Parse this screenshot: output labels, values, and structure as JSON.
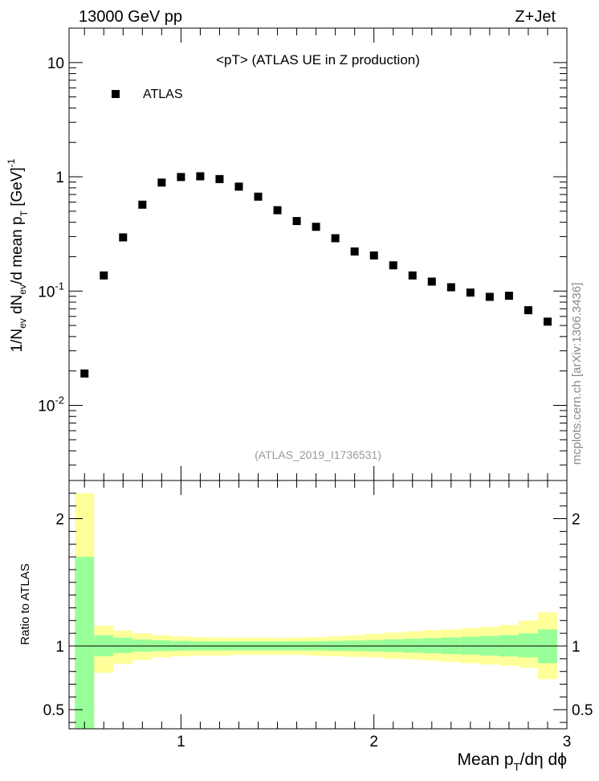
{
  "header": {
    "energy_label": "13000 GeV pp",
    "process_label": "Z+Jet",
    "side_label": "mcplots.cern.ch [arXiv:1306.3436]"
  },
  "chart_data": [
    {
      "type": "scatter",
      "title": "<pT>  (ATLAS UE in Z production)",
      "analysis_label": "(ATLAS_2019_I1736531)",
      "ylabel": "1/N",
      "ylabel_parts": {
        "sub_ev": "ev",
        "mid": " dN",
        "sub_ev2": "ev",
        "tail": "/d mean p",
        "sub_t": "T",
        "unit": " [GeV]",
        "sup": "-1"
      },
      "xlabel": "Mean p",
      "xlabel_parts": {
        "sub_t": "T",
        "tail": "/dη dϕ"
      },
      "log_y": true,
      "xlim": [
        0.42,
        3.0
      ],
      "ylim": [
        0.0022,
        20
      ],
      "y_ticks": [
        {
          "value": 0.01,
          "base": "10",
          "exp": "-2"
        },
        {
          "value": 0.1,
          "base": "10",
          "exp": "-1"
        },
        {
          "value": 1,
          "base": "1",
          "exp": ""
        },
        {
          "value": 10,
          "base": "10",
          "exp": ""
        }
      ],
      "x_ticks": [
        1,
        2,
        3
      ],
      "legend": {
        "placement": "top-left",
        "entries": [
          "ATLAS"
        ]
      },
      "series": [
        {
          "name": "ATLAS",
          "marker": "square",
          "x": [
            0.5,
            0.6,
            0.7,
            0.8,
            0.9,
            1.0,
            1.1,
            1.2,
            1.3,
            1.4,
            1.5,
            1.6,
            1.7,
            1.8,
            1.9,
            2.0,
            2.1,
            2.2,
            2.3,
            2.4,
            2.5,
            2.6,
            2.7,
            2.8,
            2.9
          ],
          "y": [
            0.019,
            0.137,
            0.295,
            0.57,
            0.89,
            0.995,
            1.01,
            0.955,
            0.82,
            0.67,
            0.51,
            0.41,
            0.365,
            0.29,
            0.222,
            0.205,
            0.168,
            0.137,
            0.121,
            0.108,
            0.097,
            0.089,
            0.091,
            0.068,
            0.054
          ]
        }
      ]
    },
    {
      "type": "area",
      "ylabel": "Ratio to ATLAS",
      "xlim": [
        0.42,
        3.0
      ],
      "ylim": [
        0.35,
        2.3
      ],
      "y_ticks": [
        0.5,
        1,
        2
      ],
      "x_ticks": [
        1,
        2,
        3
      ],
      "reference_line": 1,
      "band_colors": {
        "outer": "#ffff99",
        "inner": "#99ff99",
        "line": "#000000"
      },
      "bins": {
        "edges": [
          0.45,
          0.55,
          0.65,
          0.75,
          0.85,
          0.95,
          1.05,
          1.15,
          1.25,
          1.35,
          1.45,
          1.55,
          1.65,
          1.75,
          1.85,
          1.95,
          2.05,
          2.15,
          2.25,
          2.35,
          2.45,
          2.55,
          2.65,
          2.75,
          2.85,
          2.95
        ],
        "outer_low": [
          0.3,
          0.79,
          0.86,
          0.89,
          0.91,
          0.92,
          0.925,
          0.925,
          0.93,
          0.93,
          0.93,
          0.93,
          0.925,
          0.92,
          0.915,
          0.91,
          0.9,
          0.895,
          0.885,
          0.875,
          0.865,
          0.855,
          0.845,
          0.83,
          0.74
        ],
        "outer_high": [
          2.2,
          1.16,
          1.12,
          1.1,
          1.085,
          1.075,
          1.07,
          1.065,
          1.065,
          1.065,
          1.065,
          1.065,
          1.07,
          1.075,
          1.085,
          1.095,
          1.105,
          1.115,
          1.125,
          1.13,
          1.14,
          1.15,
          1.165,
          1.2,
          1.265
        ],
        "inner_low": [
          0.3,
          0.92,
          0.945,
          0.955,
          0.96,
          0.963,
          0.965,
          0.965,
          0.965,
          0.965,
          0.965,
          0.965,
          0.965,
          0.962,
          0.96,
          0.957,
          0.952,
          0.948,
          0.943,
          0.937,
          0.932,
          0.925,
          0.918,
          0.91,
          0.865
        ],
        "inner_high": [
          1.7,
          1.085,
          1.065,
          1.052,
          1.045,
          1.04,
          1.037,
          1.036,
          1.036,
          1.036,
          1.036,
          1.037,
          1.038,
          1.04,
          1.043,
          1.047,
          1.052,
          1.057,
          1.062,
          1.067,
          1.073,
          1.078,
          1.086,
          1.1,
          1.13
        ]
      }
    }
  ]
}
